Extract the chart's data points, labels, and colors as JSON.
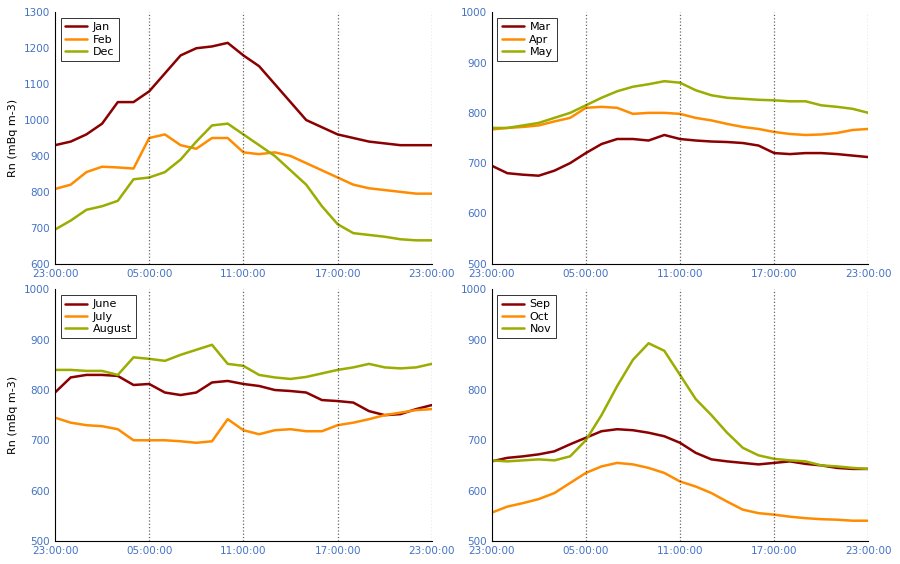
{
  "colors": {
    "dark_red": "#8B0000",
    "orange": "#FF8C00",
    "yellow_green": "#9AAD00"
  },
  "tick_color": "#4472C4",
  "x_ticks_labels": [
    "23:00:00",
    "05:00:00",
    "11:00:00",
    "17:00:00",
    "23:00:00"
  ],
  "x_ticks_positions": [
    0,
    6,
    12,
    18,
    24
  ],
  "vline_positions": [
    6,
    12,
    18,
    24
  ],
  "panels": [
    {
      "legends": [
        "Jan",
        "Feb",
        "Dec"
      ],
      "ylim": [
        600,
        1300
      ],
      "yticks": [
        600,
        700,
        800,
        900,
        1000,
        1100,
        1200,
        1300
      ],
      "series": [
        [
          930,
          940,
          960,
          990,
          1050,
          1050,
          1080,
          1130,
          1180,
          1200,
          1205,
          1215,
          1180,
          1150,
          1100,
          1050,
          1000,
          980,
          960,
          950,
          940,
          935,
          930,
          930,
          930
        ],
        [
          808,
          820,
          855,
          870,
          868,
          865,
          950,
          960,
          930,
          920,
          950,
          950,
          910,
          905,
          910,
          900,
          880,
          860,
          840,
          820,
          810,
          805,
          800,
          795,
          795
        ],
        [
          695,
          720,
          750,
          760,
          775,
          835,
          840,
          855,
          890,
          940,
          985,
          990,
          960,
          930,
          900,
          860,
          820,
          760,
          710,
          685,
          680,
          675,
          668,
          665,
          665
        ]
      ]
    },
    {
      "legends": [
        "Mar",
        "Apr",
        "May"
      ],
      "ylim": [
        500,
        1000
      ],
      "yticks": [
        500,
        600,
        700,
        800,
        900,
        1000
      ],
      "series": [
        [
          695,
          680,
          677,
          675,
          685,
          700,
          720,
          738,
          748,
          748,
          745,
          756,
          748,
          745,
          743,
          742,
          740,
          735,
          720,
          718,
          720,
          720,
          718,
          715,
          712
        ],
        [
          767,
          770,
          772,
          775,
          783,
          790,
          810,
          812,
          810,
          798,
          800,
          800,
          798,
          790,
          785,
          778,
          772,
          768,
          762,
          758,
          756,
          757,
          760,
          766,
          768
        ],
        [
          770,
          770,
          775,
          780,
          790,
          800,
          815,
          830,
          843,
          852,
          857,
          863,
          860,
          845,
          835,
          830,
          828,
          826,
          825,
          823,
          823,
          815,
          812,
          808,
          800
        ]
      ]
    },
    {
      "legends": [
        "June",
        "July",
        "August"
      ],
      "ylim": [
        500,
        1000
      ],
      "yticks": [
        500,
        600,
        700,
        800,
        900,
        1000
      ],
      "series": [
        [
          795,
          825,
          830,
          830,
          828,
          810,
          812,
          795,
          790,
          795,
          815,
          818,
          812,
          808,
          800,
          798,
          795,
          780,
          778,
          775,
          758,
          750,
          752,
          762,
          770
        ],
        [
          745,
          735,
          730,
          728,
          722,
          700,
          700,
          700,
          698,
          695,
          698,
          742,
          720,
          712,
          720,
          722,
          718,
          718,
          730,
          735,
          742,
          750,
          755,
          760,
          762
        ],
        [
          840,
          840,
          838,
          838,
          830,
          865,
          862,
          858,
          870,
          880,
          890,
          852,
          848,
          830,
          825,
          822,
          826,
          833,
          840,
          845,
          852,
          845,
          843,
          845,
          852
        ]
      ]
    },
    {
      "legends": [
        "Sep",
        "Oct",
        "Nov"
      ],
      "ylim": [
        500,
        1000
      ],
      "yticks": [
        500,
        600,
        700,
        800,
        900,
        1000
      ],
      "series": [
        [
          658,
          665,
          668,
          672,
          678,
          692,
          705,
          718,
          722,
          720,
          715,
          708,
          695,
          675,
          662,
          658,
          655,
          652,
          655,
          658,
          653,
          650,
          645,
          643,
          643
        ],
        [
          556,
          568,
          575,
          583,
          595,
          615,
          635,
          648,
          655,
          652,
          645,
          635,
          618,
          608,
          595,
          578,
          562,
          555,
          552,
          548,
          545,
          543,
          542,
          540,
          540
        ],
        [
          660,
          658,
          660,
          662,
          660,
          668,
          700,
          750,
          808,
          860,
          893,
          878,
          830,
          782,
          750,
          715,
          685,
          670,
          663,
          660,
          658,
          650,
          648,
          645,
          643
        ]
      ]
    }
  ]
}
